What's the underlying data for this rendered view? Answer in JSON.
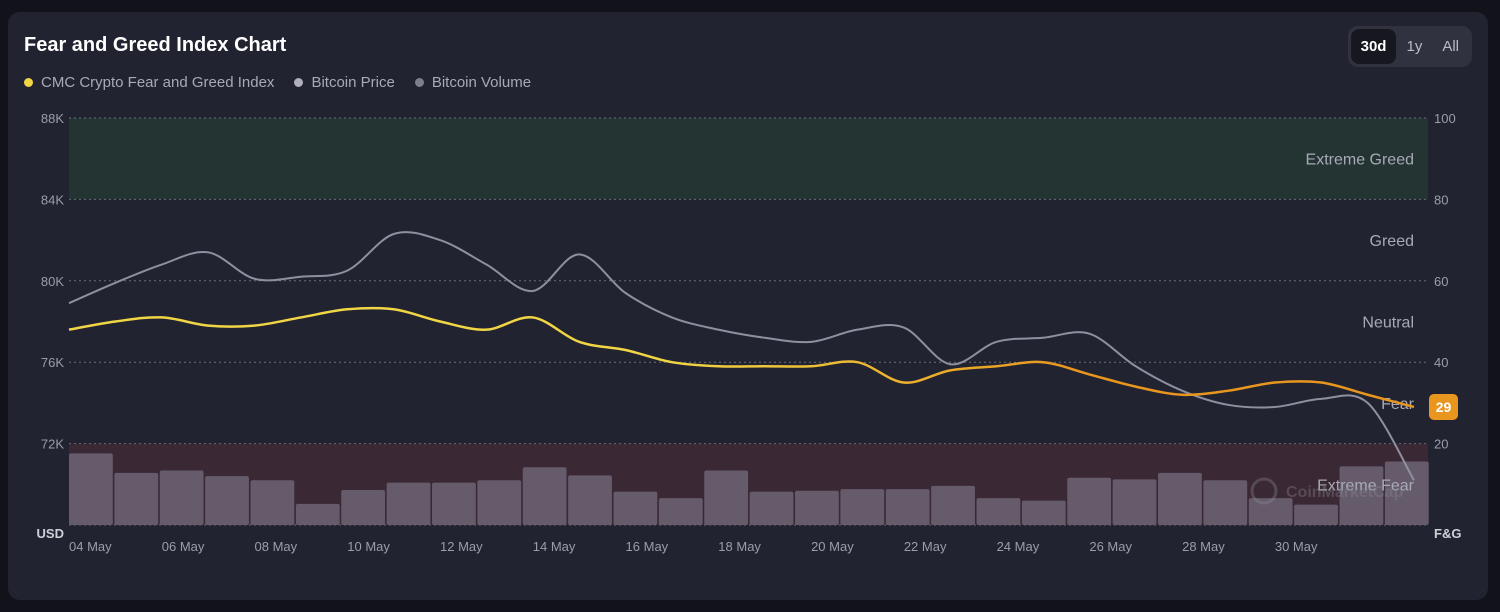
{
  "header": {
    "title": "Fear and Greed Index Chart"
  },
  "legend": [
    {
      "label": "CMC Crypto Fear and Greed Index",
      "color": "#f0d544"
    },
    {
      "label": "Bitcoin Price",
      "color": "#b0b0bd"
    },
    {
      "label": "Bitcoin Volume",
      "color": "#7d7f8c"
    }
  ],
  "range_tabs": [
    {
      "label": "30d",
      "active": true
    },
    {
      "label": "1y",
      "active": false
    },
    {
      "label": "All",
      "active": false
    }
  ],
  "watermark": "CoinMarketCap",
  "chart_data": {
    "type": "line",
    "left_axis": {
      "title": "USD",
      "ticks": [
        "88K",
        "84K",
        "80K",
        "76K",
        "72K"
      ],
      "values": [
        88000,
        84000,
        80000,
        76000,
        72000
      ],
      "range": [
        68000,
        88000
      ]
    },
    "right_axis": {
      "title": "F&G",
      "ticks": [
        "100",
        "80",
        "60",
        "40",
        "20"
      ],
      "values": [
        100,
        80,
        60,
        40,
        20
      ],
      "range": [
        0,
        100
      ]
    },
    "x_tick_labels": [
      "04 May",
      "06 May",
      "08 May",
      "10 May",
      "12 May",
      "14 May",
      "16 May",
      "18 May",
      "20 May",
      "22 May",
      "24 May",
      "26 May",
      "28 May",
      "30 May"
    ],
    "zones": [
      {
        "label": "Extreme Greed",
        "from": 80,
        "to": 100,
        "color": "#233433"
      },
      {
        "label": "Greed",
        "from": 60,
        "to": 80
      },
      {
        "label": "Neutral",
        "from": 40,
        "to": 60
      },
      {
        "label": "Fear",
        "from": 20,
        "to": 40
      },
      {
        "label": "Extreme Fear",
        "from": 0,
        "to": 20,
        "color": "#3a2834"
      }
    ],
    "current_value": {
      "label": "29",
      "value": 29,
      "color": "#e8961e"
    },
    "x_days": [
      0,
      1,
      2,
      3,
      4,
      5,
      6,
      7,
      8,
      9,
      10,
      11,
      12,
      13,
      14,
      15,
      16,
      17,
      18,
      19,
      20,
      21,
      22,
      23,
      24,
      25,
      26,
      27,
      28,
      29
    ],
    "series": [
      {
        "name": "CMC Crypto Fear and Greed Index",
        "axis": "right",
        "color_start": "#f0d544",
        "color_end": "#e8961e",
        "values": [
          48,
          50,
          51,
          49,
          49,
          51,
          53,
          53,
          50,
          48,
          51,
          45,
          43,
          40,
          39,
          39,
          39,
          40,
          35,
          38,
          39,
          40,
          37,
          34,
          32,
          33,
          35,
          35,
          32,
          29
        ]
      },
      {
        "name": "Bitcoin Price",
        "axis": "left",
        "color": "#8e90a0",
        "values": [
          78900,
          79900,
          80800,
          81400,
          80100,
          80200,
          80500,
          82300,
          82000,
          80800,
          79500,
          81300,
          79400,
          78200,
          77600,
          77200,
          77000,
          77600,
          77700,
          75900,
          77000,
          77200,
          77400,
          75800,
          74600,
          73900,
          73800,
          74200,
          74000,
          70200
        ]
      },
      {
        "name": "Bitcoin Volume",
        "axis": "bottom-band",
        "color": "#665b6b",
        "values": [
          0.88,
          0.64,
          0.67,
          0.6,
          0.55,
          0.26,
          0.43,
          0.52,
          0.52,
          0.55,
          0.71,
          0.61,
          0.41,
          0.33,
          0.67,
          0.41,
          0.42,
          0.44,
          0.44,
          0.48,
          0.33,
          0.3,
          0.58,
          0.56,
          0.64,
          0.55,
          0.33,
          0.25,
          0.72,
          0.78
        ]
      }
    ],
    "grid": true,
    "legend_position": "top-left"
  }
}
